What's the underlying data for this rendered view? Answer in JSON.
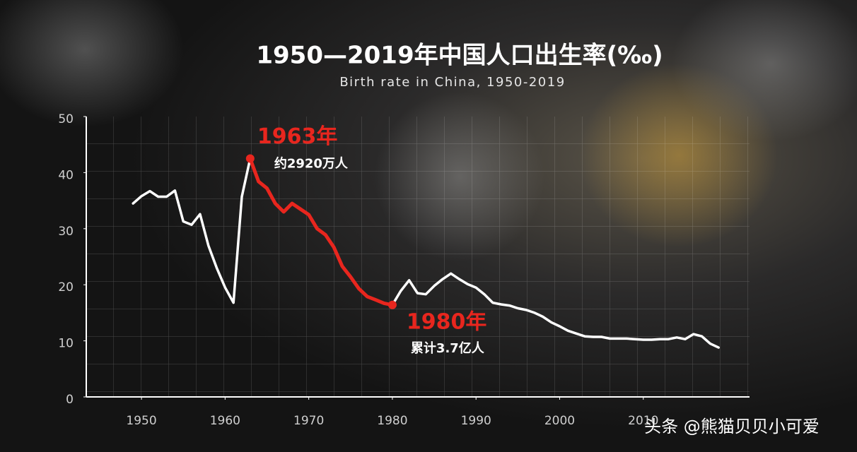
{
  "chart_data": {
    "type": "line",
    "title": "1950—2019年中国人口出生率(‰)",
    "subtitle": "Birth rate in China, 1950-2019",
    "x": [
      1949,
      1950,
      1951,
      1952,
      1953,
      1954,
      1955,
      1956,
      1957,
      1958,
      1959,
      1960,
      1961,
      1962,
      1963,
      1964,
      1965,
      1966,
      1967,
      1968,
      1969,
      1970,
      1971,
      1972,
      1973,
      1974,
      1975,
      1976,
      1977,
      1978,
      1979,
      1980,
      1981,
      1982,
      1983,
      1984,
      1985,
      1986,
      1987,
      1988,
      1989,
      1990,
      1991,
      1992,
      1993,
      1994,
      1995,
      1996,
      1997,
      1998,
      1999,
      2000,
      2001,
      2002,
      2003,
      2004,
      2005,
      2006,
      2007,
      2008,
      2009,
      2010,
      2011,
      2012,
      2013,
      2014,
      2015,
      2016,
      2017,
      2018,
      2019
    ],
    "series": [
      {
        "color": "#ffffff",
        "values": [
          34.5,
          35.8,
          36.7,
          35.7,
          35.7,
          36.8,
          31.3,
          30.7,
          32.6,
          27,
          23,
          19.5,
          16.8,
          35.7,
          42.5,
          38.4,
          37.2,
          34.5,
          33,
          34.5,
          33.5,
          32.5,
          30,
          28.9,
          26.7,
          23.3,
          21.4,
          19.3,
          17.9,
          17.3,
          16.7,
          16.4,
          18.9,
          20.8,
          18.5,
          18.3,
          19.8,
          21,
          22,
          21,
          20.1,
          19.5,
          18.3,
          16.8,
          16.5,
          16.3,
          15.8,
          15.5,
          15,
          14.3,
          13.3,
          12.6,
          11.8,
          11.3,
          10.8,
          10.7,
          10.7,
          10.4,
          10.4,
          10.4,
          10.3,
          10.2,
          10.2,
          10.3,
          10.3,
          10.6,
          10.3,
          11.2,
          10.8,
          9.5,
          8.8
        ]
      },
      {
        "color": "#e8261e",
        "values": [
          null,
          null,
          null,
          null,
          null,
          null,
          null,
          null,
          null,
          null,
          null,
          null,
          null,
          null,
          42.5,
          38.4,
          37.2,
          34.5,
          33,
          34.5,
          33.5,
          32.5,
          30,
          28.9,
          26.7,
          23.3,
          21.4,
          19.3,
          17.9,
          17.3,
          16.7,
          16.4,
          null,
          null,
          null,
          null,
          null,
          null,
          null,
          null,
          null,
          null,
          null,
          null,
          null,
          null,
          null,
          null,
          null,
          null,
          null,
          null,
          null,
          null,
          null,
          null,
          null,
          null,
          null,
          null,
          null,
          null,
          null,
          null,
          null,
          null,
          null,
          null,
          null,
          null,
          null
        ]
      }
    ],
    "xlim": [
      1943.4,
      2022.7
    ],
    "xticks": [
      1950,
      1960,
      1970,
      1980,
      1990,
      2000,
      2010
    ],
    "ylim": [
      0,
      50
    ],
    "yticks": [
      0,
      10,
      20,
      30,
      40,
      50
    ],
    "grid": true,
    "annotations": [
      {
        "title": "1963年",
        "text": "约2920万人"
      },
      {
        "title": "1980年",
        "text": "累计3.7亿人"
      }
    ],
    "watermark": "头条 @熊猫贝贝小可爱"
  }
}
